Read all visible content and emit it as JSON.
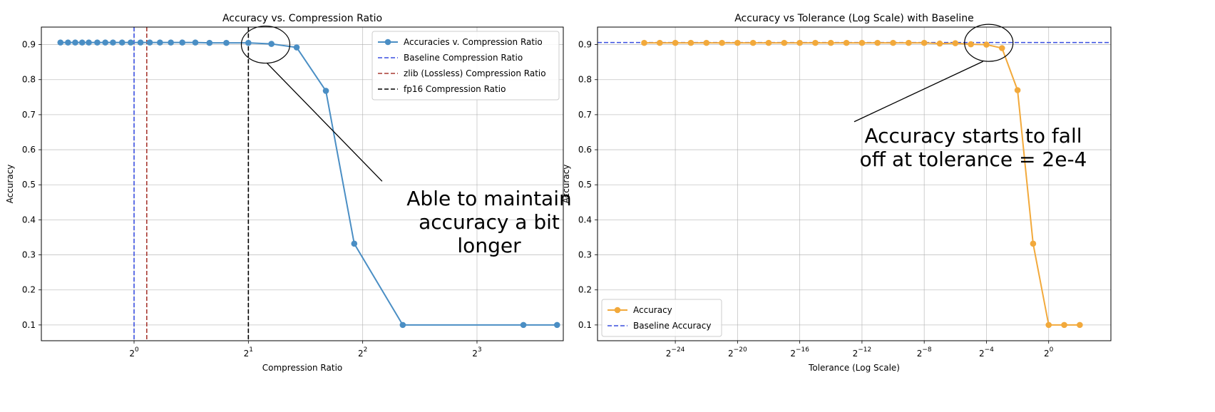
{
  "chart_data": [
    {
      "type": "line",
      "title": "Accuracy vs. Compression Ratio",
      "xlabel": "Compression Ratio",
      "ylabel": "Accuracy",
      "x_scale": "log2",
      "xlim": [
        0.57,
        13.5
      ],
      "ylim": [
        0.055,
        0.95
      ],
      "xticks": [
        {
          "base": "2",
          "exp": "0",
          "value": 1
        },
        {
          "base": "2",
          "exp": "1",
          "value": 2
        },
        {
          "base": "2",
          "exp": "2",
          "value": 4
        },
        {
          "base": "2",
          "exp": "3",
          "value": 8
        }
      ],
      "yticks": [
        "0.1",
        "0.2",
        "0.3",
        "0.4",
        "0.5",
        "0.6",
        "0.7",
        "0.8",
        "0.9"
      ],
      "grid": true,
      "legend_position": "top-right",
      "series": [
        {
          "name": "Accuracies v. Compression Ratio",
          "color": "#4a8ec4",
          "marker": "circle",
          "x": [
            0.64,
            0.67,
            0.7,
            0.73,
            0.76,
            0.8,
            0.84,
            0.88,
            0.93,
            0.98,
            1.04,
            1.1,
            1.17,
            1.25,
            1.34,
            1.45,
            1.58,
            1.75,
            2.0,
            2.3,
            2.68,
            3.2,
            3.8,
            5.1,
            10.6,
            13.0
          ],
          "y": [
            0.906,
            0.906,
            0.906,
            0.906,
            0.906,
            0.906,
            0.906,
            0.906,
            0.906,
            0.906,
            0.906,
            0.906,
            0.906,
            0.906,
            0.906,
            0.906,
            0.905,
            0.905,
            0.905,
            0.902,
            0.892,
            0.768,
            0.332,
            0.1,
            0.1,
            0.1
          ]
        }
      ],
      "reference_lines": [
        {
          "name": "Baseline Compression Ratio",
          "orientation": "vertical",
          "value": 1.0,
          "color": "#3a4fe0",
          "style": "dashed"
        },
        {
          "name": "zlib (Lossless) Compression Ratio",
          "orientation": "vertical",
          "value": 1.08,
          "color": "#a83a32",
          "style": "dashed"
        },
        {
          "name": "fp16 Compression Ratio",
          "orientation": "vertical",
          "value": 2.0,
          "color": "#000000",
          "style": "dashed"
        }
      ],
      "annotation": {
        "lines": [
          "Able to maintain",
          "accuracy a bit",
          "longer"
        ],
        "circle_center": {
          "x": 2.22,
          "y": 0.9
        },
        "arrow_target": {
          "x": 4.5,
          "y": 0.51
        }
      }
    },
    {
      "type": "line",
      "title": "Accuracy vs Tolerance (Log Scale) with Baseline",
      "xlabel": "Tolerance (Log Scale)",
      "ylabel": "Accuracy",
      "x_scale": "log2",
      "xlim_exp": [
        -29,
        4
      ],
      "ylim": [
        0.055,
        0.95
      ],
      "xticks": [
        {
          "base": "2",
          "exp": "−24",
          "value": -24
        },
        {
          "base": "2",
          "exp": "−20",
          "value": -20
        },
        {
          "base": "2",
          "exp": "−16",
          "value": -16
        },
        {
          "base": "2",
          "exp": "−12",
          "value": -12
        },
        {
          "base": "2",
          "exp": "−8",
          "value": -8
        },
        {
          "base": "2",
          "exp": "−4",
          "value": -4
        },
        {
          "base": "2",
          "exp": "0",
          "value": 0
        }
      ],
      "yticks": [
        "0.1",
        "0.2",
        "0.3",
        "0.4",
        "0.5",
        "0.6",
        "0.7",
        "0.8",
        "0.9"
      ],
      "grid": true,
      "legend_position": "bottom-left",
      "series": [
        {
          "name": "Accuracy",
          "color": "#f2a93b",
          "marker": "circle",
          "x_exp": [
            -26,
            -25,
            -24,
            -23,
            -22,
            -21,
            -20,
            -19,
            -18,
            -17,
            -16,
            -15,
            -14,
            -13,
            -12,
            -11,
            -10,
            -9,
            -8,
            -7,
            -6,
            -5,
            -4,
            -3,
            -2,
            -1,
            0,
            1,
            2
          ],
          "y": [
            0.905,
            0.905,
            0.905,
            0.905,
            0.905,
            0.905,
            0.905,
            0.905,
            0.905,
            0.905,
            0.905,
            0.905,
            0.905,
            0.905,
            0.905,
            0.905,
            0.905,
            0.905,
            0.905,
            0.903,
            0.904,
            0.901,
            0.9,
            0.89,
            0.77,
            0.332,
            0.1,
            0.1,
            0.1
          ]
        }
      ],
      "reference_lines": [
        {
          "name": "Baseline Accuracy",
          "orientation": "horizontal",
          "value": 0.906,
          "color": "#3a4fe0",
          "style": "dashed"
        }
      ],
      "annotation": {
        "lines": [
          "Accuracy starts to fall",
          "off at tolerance = 2e-4"
        ],
        "circle_center": {
          "x_exp": -3.85,
          "y": 0.905
        },
        "arrow_target": {
          "x_exp": -12.5,
          "y": 0.68
        }
      }
    }
  ]
}
